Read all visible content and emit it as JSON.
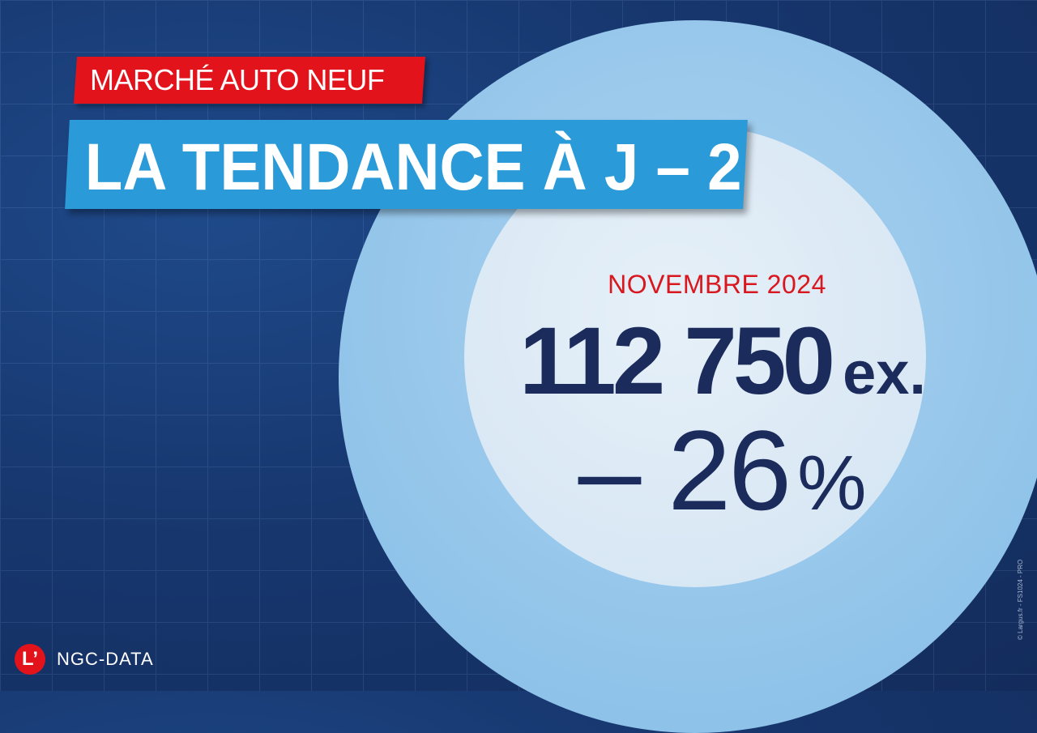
{
  "banner": {
    "category": "MARCHÉ AUTO NEUF",
    "title": "LA TENDANCE À J – 2"
  },
  "stat": {
    "period": "NOVEMBRE 2024",
    "count": "112 750",
    "unit": "ex.",
    "change_sign": "–",
    "change_value": "26",
    "change_unit": "%"
  },
  "brand": {
    "logo_letter": "L’",
    "partner": "NGC-DATA"
  },
  "credit": "© Largus.fr - FS1024 - PRO",
  "colors": {
    "background": "#17376f",
    "red": "#e3131b",
    "blue_banner": "#2a9ad8",
    "navy_text": "#1b2b5c",
    "outer_circle": "#86bde6",
    "inner_circle": "#dbe9f5"
  }
}
